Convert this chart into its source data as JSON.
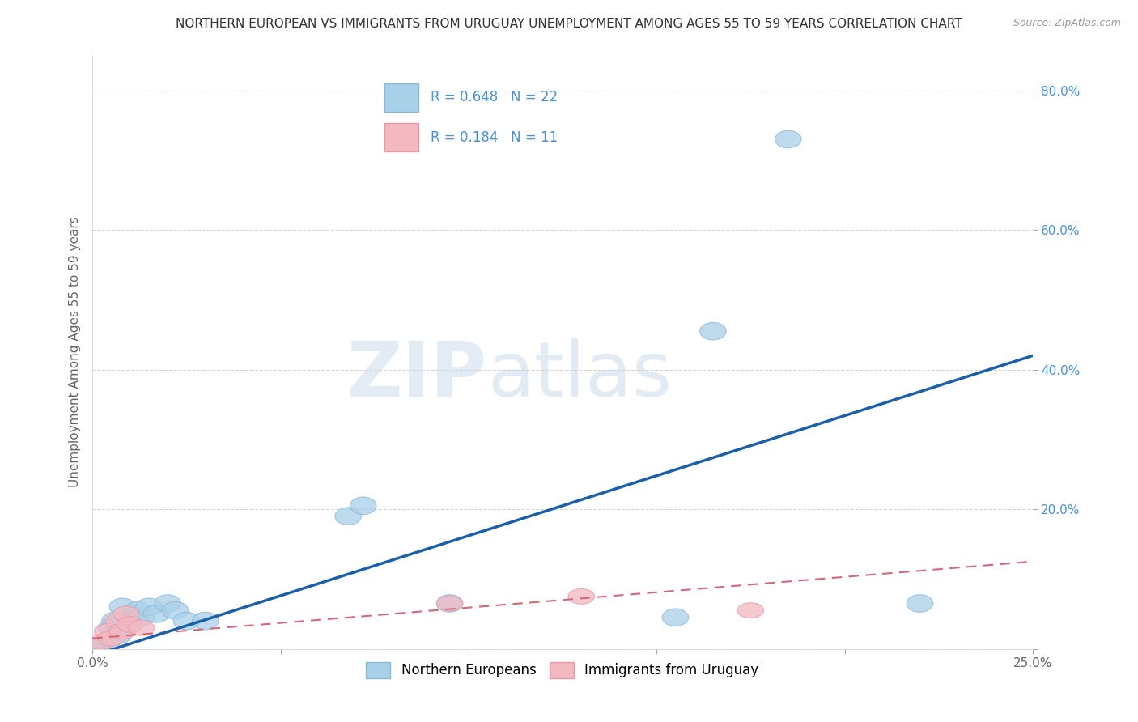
{
  "title": "NORTHERN EUROPEAN VS IMMIGRANTS FROM URUGUAY UNEMPLOYMENT AMONG AGES 55 TO 59 YEARS CORRELATION CHART",
  "source": "Source: ZipAtlas.com",
  "ylabel": "Unemployment Among Ages 55 to 59 years",
  "xlim": [
    0.0,
    0.25
  ],
  "ylim": [
    0.0,
    0.85
  ],
  "xticks": [
    0.0,
    0.05,
    0.1,
    0.15,
    0.2,
    0.25
  ],
  "xtick_labels": [
    "0.0%",
    "",
    "",
    "",
    "",
    "25.0%"
  ],
  "yticks": [
    0.0,
    0.2,
    0.4,
    0.6,
    0.8
  ],
  "ytick_labels": [
    "",
    "20.0%",
    "40.0%",
    "60.0%",
    "80.0%"
  ],
  "blue_R": 0.648,
  "blue_N": 22,
  "pink_R": 0.184,
  "pink_N": 11,
  "blue_scatter_x": [
    0.002,
    0.004,
    0.005,
    0.006,
    0.007,
    0.008,
    0.009,
    0.01,
    0.012,
    0.013,
    0.015,
    0.017,
    0.02,
    0.022,
    0.025,
    0.03,
    0.068,
    0.072,
    0.095,
    0.155,
    0.165,
    0.22
  ],
  "blue_scatter_y": [
    0.005,
    0.01,
    0.03,
    0.04,
    0.02,
    0.06,
    0.04,
    0.035,
    0.055,
    0.045,
    0.06,
    0.05,
    0.065,
    0.055,
    0.04,
    0.04,
    0.19,
    0.205,
    0.065,
    0.045,
    0.455,
    0.065
  ],
  "blue_outlier_x": [
    0.185
  ],
  "blue_outlier_y": [
    0.73
  ],
  "pink_scatter_x": [
    0.002,
    0.004,
    0.005,
    0.007,
    0.008,
    0.009,
    0.01,
    0.013,
    0.095,
    0.13,
    0.175
  ],
  "pink_scatter_y": [
    0.01,
    0.025,
    0.015,
    0.04,
    0.025,
    0.05,
    0.035,
    0.03,
    0.065,
    0.075,
    0.055
  ],
  "blue_line_x": [
    0.0,
    0.25
  ],
  "blue_line_y": [
    -0.01,
    0.42
  ],
  "pink_line_x": [
    0.0,
    0.25
  ],
  "pink_line_y": [
    0.015,
    0.125
  ],
  "blue_scatter_color": "#a8d0e8",
  "blue_scatter_edge": "#89b8d8",
  "blue_line_color": "#1a5fa8",
  "pink_scatter_color": "#f4b8c1",
  "pink_scatter_edge": "#e898a8",
  "pink_line_color": "#d46878",
  "legend_blue_color": "#a8d0e8",
  "legend_pink_color": "#f4b8c1",
  "watermark_zip": "ZIP",
  "watermark_atlas": "atlas",
  "background_color": "#ffffff",
  "grid_color": "#bbbbbb",
  "title_color": "#333333",
  "source_color": "#999999",
  "ylabel_color": "#666666",
  "ytick_color": "#4a90d9",
  "xtick_color": "#666666"
}
